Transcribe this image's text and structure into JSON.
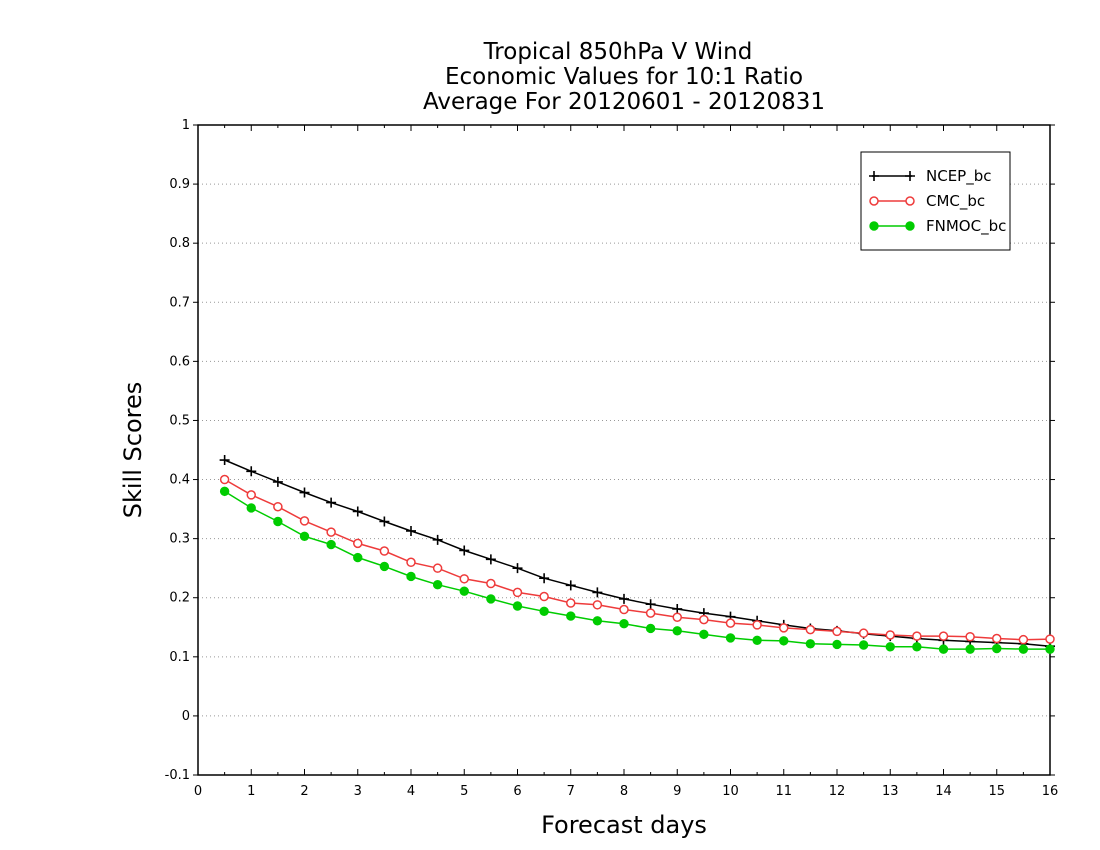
{
  "chart_data": {
    "type": "line",
    "title_lines": [
      "Tropical 850hPa V Wind",
      "Economic Values for 10:1 Ratio",
      "Average For 20120601 - 20120831"
    ],
    "xlabel": "Forecast days",
    "ylabel": "Skill Scores",
    "xlim": [
      0,
      16
    ],
    "ylim": [
      -0.1,
      1
    ],
    "x_ticks": [
      0,
      1,
      2,
      3,
      4,
      5,
      6,
      7,
      8,
      9,
      10,
      11,
      12,
      13,
      14,
      15,
      16
    ],
    "x_tick_labels": [
      "0",
      "1",
      "2",
      "3",
      "4",
      "5",
      "6",
      "7",
      "8",
      "9",
      "10",
      "11",
      "12",
      "13",
      "14",
      "15",
      "16"
    ],
    "y_ticks": [
      -0.1,
      0,
      0.1,
      0.2,
      0.3,
      0.4,
      0.5,
      0.6,
      0.7,
      0.8,
      0.9,
      1
    ],
    "y_tick_labels": [
      "-0.1",
      "0",
      "0.1",
      "0.2",
      "0.3",
      "0.4",
      "0.5",
      "0.6",
      "0.7",
      "0.8",
      "0.9",
      "1"
    ],
    "grid": "horizontal dotted",
    "legend_position": "top-right",
    "x": [
      0.5,
      1,
      1.5,
      2,
      2.5,
      3,
      3.5,
      4,
      4.5,
      5,
      5.5,
      6,
      6.5,
      7,
      7.5,
      8,
      8.5,
      9,
      9.5,
      10,
      10.5,
      11,
      11.5,
      12,
      12.5,
      13,
      13.5,
      14,
      14.5,
      15,
      15.5,
      16
    ],
    "series": [
      {
        "name": "NCEP_bc",
        "color": "#000000",
        "marker": "plus",
        "values": [
          0.433,
          0.414,
          0.396,
          0.378,
          0.361,
          0.346,
          0.329,
          0.313,
          0.298,
          0.28,
          0.265,
          0.25,
          0.233,
          0.221,
          0.209,
          0.198,
          0.189,
          0.181,
          0.174,
          0.168,
          0.161,
          0.154,
          0.148,
          0.144,
          0.139,
          0.135,
          0.131,
          0.128,
          0.126,
          0.124,
          0.122,
          0.118
        ]
      },
      {
        "name": "CMC_bc",
        "color": "#ee3b3b",
        "marker": "open-circle",
        "values": [
          0.4,
          0.374,
          0.354,
          0.33,
          0.311,
          0.292,
          0.279,
          0.26,
          0.25,
          0.232,
          0.224,
          0.209,
          0.202,
          0.191,
          0.188,
          0.18,
          0.174,
          0.167,
          0.163,
          0.157,
          0.154,
          0.149,
          0.146,
          0.143,
          0.14,
          0.137,
          0.135,
          0.135,
          0.134,
          0.131,
          0.129,
          0.13
        ]
      },
      {
        "name": "FNMOC_bc",
        "color": "#00cc00",
        "marker": "filled-circle",
        "values": [
          0.38,
          0.352,
          0.329,
          0.304,
          0.29,
          0.268,
          0.253,
          0.236,
          0.222,
          0.211,
          0.198,
          0.186,
          0.177,
          0.169,
          0.161,
          0.156,
          0.148,
          0.144,
          0.138,
          0.132,
          0.128,
          0.127,
          0.122,
          0.121,
          0.12,
          0.117,
          0.117,
          0.113,
          0.113,
          0.114,
          0.113,
          0.113
        ]
      }
    ]
  }
}
